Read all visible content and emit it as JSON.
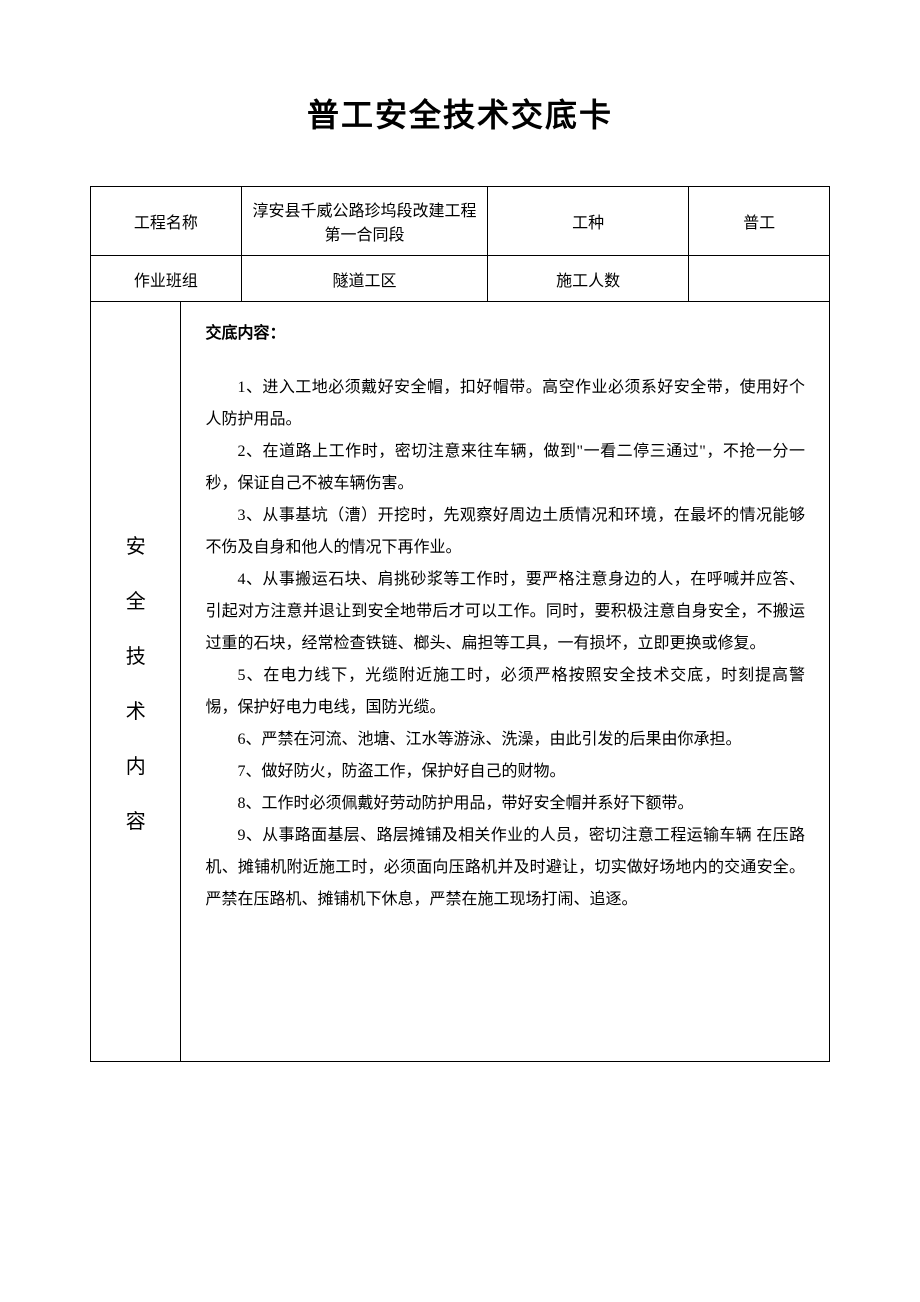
{
  "title": "普工安全技术交底卡",
  "table": {
    "row1": {
      "label_project": "工程名称",
      "value_project": "淳安县千威公路珍坞段改建工程第一合同段",
      "label_worktype": "工种",
      "value_worktype": "普工"
    },
    "row2": {
      "label_team": "作业班组",
      "value_team": "隧道工区",
      "label_count": "施工人数",
      "value_count": ""
    },
    "section_label": {
      "c1": "安",
      "c2": "全",
      "c3": "技",
      "c4": "术",
      "c5": "内",
      "c6": "容"
    },
    "content": {
      "heading": "交底内容：",
      "p1": "1、进入工地必须戴好安全帽，扣好帽带。高空作业必须系好安全带，使用好个人防护用品。",
      "p2": "2、在道路上工作时，密切注意来往车辆，做到\"一看二停三通过\"，不抢一分一秒，保证自己不被车辆伤害。",
      "p3": "3、从事基坑（漕）开挖时，先观察好周边土质情况和环境，在最坏的情况能够不伤及自身和他人的情况下再作业。",
      "p4": "4、从事搬运石块、肩挑砂浆等工作时，要严格注意身边的人，在呼喊并应答、引起对方注意并退让到安全地带后才可以工作。同时，要积极注意自身安全，不搬运过重的石块，经常检查铁链、榔头、扁担等工具，一有损坏，立即更换或修复。",
      "p5": "5、在电力线下，光缆附近施工时，必须严格按照安全技术交底，时刻提高警惕，保护好电力电线，国防光缆。",
      "p6": "6、严禁在河流、池塘、江水等游泳、洗澡，由此引发的后果由你承担。",
      "p7": "7、做好防火，防盗工作，保护好自己的财物。",
      "p8": "8、工作时必须佩戴好劳动防护用品，带好安全帽并系好下额带。",
      "p9": "9、从事路面基层、路层摊铺及相关作业的人员，密切注意工程运输车辆 在压路机、摊铺机附近施工时，必须面向压路机并及时避让，切实做好场地内的交通安全。严禁在压路机、摊铺机下休息，严禁在施工现场打闹、追逐。"
    }
  },
  "style": {
    "page_bg": "#ffffff",
    "border_color": "#000000",
    "title_fontsize": 32,
    "body_fontsize": 16,
    "vertical_label_fontsize": 20
  }
}
